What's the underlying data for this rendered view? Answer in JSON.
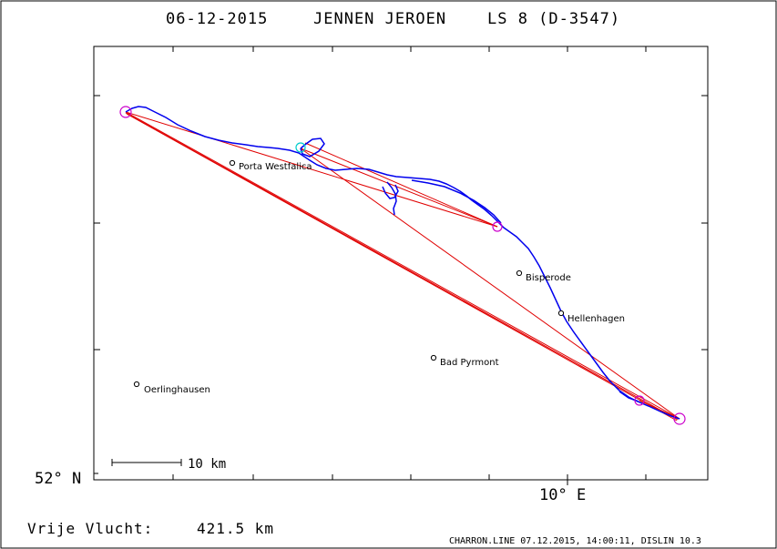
{
  "title": {
    "date": "06-12-2015",
    "pilot": "JENNEN JEROEN",
    "glider": "LS 8 (D-3547)"
  },
  "axes": {
    "lat_label": "52° N",
    "lon_label": "10° E"
  },
  "places": [
    {
      "name": "Porta Westfalica"
    },
    {
      "name": "Bisperode"
    },
    {
      "name": "Hellenhagen"
    },
    {
      "name": "Bad Pyrmont"
    },
    {
      "name": "Oerlinghausen"
    }
  ],
  "scale_bar": {
    "label": "10 km"
  },
  "distance": {
    "label": "Vrije Vlucht:",
    "value": "421.5 km"
  },
  "footer": "CHARRON.LINE 07.12.2015, 14:00:11, DISLIN 10.3",
  "colors": {
    "track": "#0000ff",
    "task_lines": "#ff0000",
    "turnpoints": "#cc00cc",
    "start_marker": "#00cccc"
  }
}
